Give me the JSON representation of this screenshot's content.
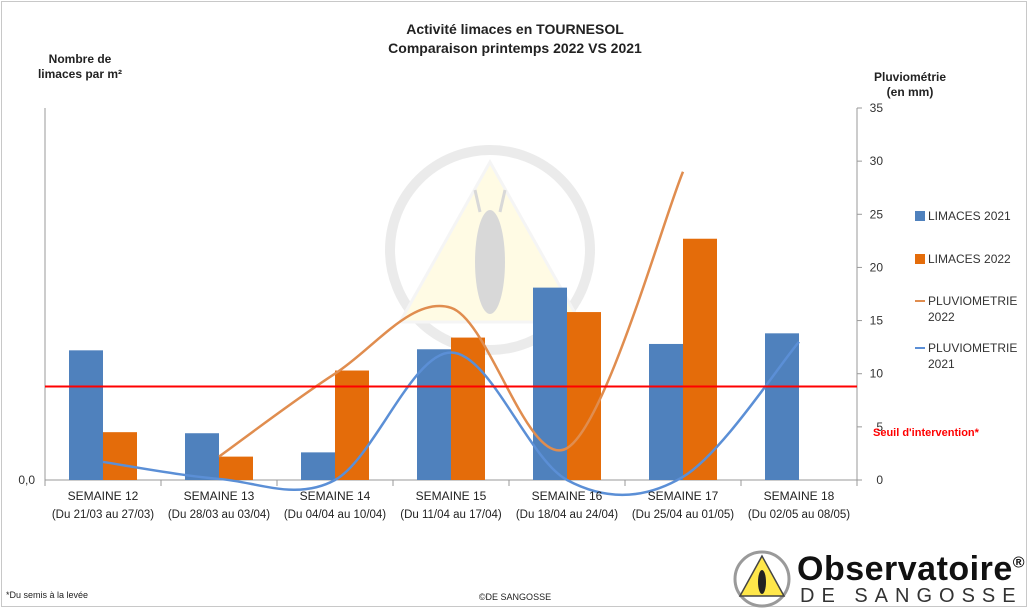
{
  "title_line1": "Activité limaces en TOURNESOL",
  "title_line2": "Comparaison printemps 2022 VS 2021",
  "left_axis_label_line1": "Nombre de",
  "left_axis_label_line2": "limaces par m²",
  "right_axis_label_line1": "Pluviométrie",
  "right_axis_label_line2": "(en mm)",
  "threshold_label": "Seuil d'intervention*",
  "footnote_star": "*",
  "footnote_text": "Du semis à la levée",
  "copyright": "©DE SANGOSSE",
  "logo": {
    "main": "Observatoire",
    "registered": "®",
    "sub": "DE SANGOSSE"
  },
  "colors": {
    "limaces_2021": "#4f81bd",
    "limaces_2022": "#e46c0a",
    "pluvio_2022": "#e08d4f",
    "pluvio_2021": "#5b8fd6",
    "threshold": "#ff0000"
  },
  "chart_data": {
    "type": "bar",
    "title": "Activité limaces en TOURNESOL — Comparaison printemps 2022 VS 2021",
    "categories": [
      "SEMAINE 12|(Du 21/03 au 27/03)",
      "SEMAINE 13|(Du 28/03 au 03/04)",
      "SEMAINE 14|(Du 04/04 au 10/04)",
      "SEMAINE 15|(Du 11/04 au 17/04)",
      "SEMAINE 16|(Du 18/04 au 24/04)",
      "SEMAINE 17|(Du 25/04 au 01/05)",
      "SEMAINE 18|(Du 02/05 au 08/05)"
    ],
    "left_axis": {
      "label": "Nombre de limaces par m²",
      "ticks": [
        "0,0"
      ],
      "ylim": [
        0,
        35
      ]
    },
    "right_axis": {
      "label": "Pluviométrie (en mm)",
      "ticks": [
        0,
        5,
        10,
        15,
        20,
        25,
        30,
        35
      ],
      "ylim": [
        0,
        35
      ]
    },
    "series": [
      {
        "name": "LIMACES 2021",
        "type": "bar",
        "axis": "left",
        "values": [
          12.2,
          4.4,
          2.6,
          12.3,
          18.1,
          12.8,
          13.8
        ]
      },
      {
        "name": "LIMACES 2022",
        "type": "bar",
        "axis": "left",
        "values": [
          4.5,
          2.2,
          10.3,
          13.4,
          15.8,
          22.7,
          null
        ]
      },
      {
        "name": "PLUVIOMETRIE 2022",
        "type": "line",
        "axis": "right",
        "values": [
          null,
          2.2,
          10.0,
          16.2,
          3.0,
          29.0,
          null
        ]
      },
      {
        "name": "PLUVIOMETRIE 2021",
        "type": "line",
        "axis": "right",
        "values": [
          1.7,
          0.1,
          0.0,
          12.0,
          0.0,
          0.3,
          13.0
        ]
      }
    ],
    "threshold": {
      "label": "Seuil d'intervention*",
      "value": 8.8
    },
    "grid": false,
    "legend_position": "right"
  }
}
